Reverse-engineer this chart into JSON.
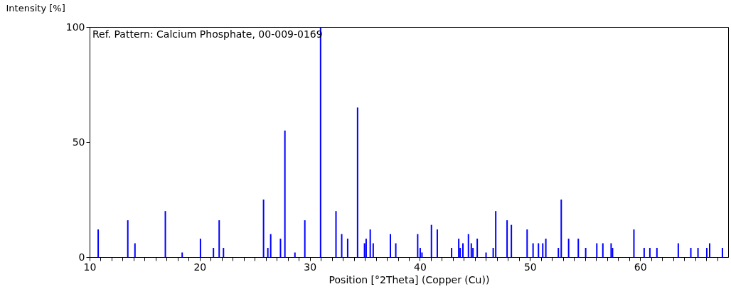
{
  "chart_data": {
    "type": "bar",
    "xlabel": "Position [°2Theta] (Copper (Cu))",
    "ylabel": "Intensity [%]",
    "annotations": [
      "Ref. Pattern: Calcium Phosphate, 00-009-0169"
    ],
    "x": [
      10.78,
      13.47,
      14.12,
      16.88,
      18.41,
      20.07,
      21.25,
      21.77,
      22.16,
      25.8,
      26.19,
      26.45,
      27.34,
      27.74,
      28.65,
      29.55,
      30.98,
      32.38,
      32.9,
      33.44,
      34.34,
      34.97,
      35.12,
      35.49,
      35.76,
      37.32,
      37.81,
      39.8,
      40.03,
      40.19,
      41.05,
      41.58,
      42.88,
      43.53,
      43.66,
      43.91,
      44.41,
      44.67,
      44.82,
      45.21,
      46.01,
      46.66,
      46.89,
      47.92,
      48.31,
      49.74,
      50.28,
      50.77,
      51.16,
      51.44,
      52.58,
      52.84,
      53.51,
      54.39,
      55.06,
      56.07,
      56.62,
      57.37,
      57.5,
      59.44,
      60.37,
      60.89,
      61.53,
      63.47,
      64.61,
      65.26,
      66.06,
      66.32,
      67.48
    ],
    "series": [
      {
        "color": "#0000ff",
        "values": [
          12,
          16,
          6,
          20,
          2,
          8,
          4,
          16,
          4,
          25,
          4,
          10,
          8,
          55,
          2,
          16,
          100,
          20,
          10,
          8,
          65,
          6,
          8,
          12,
          6,
          10,
          6,
          10,
          4,
          2,
          14,
          12,
          4,
          8,
          4,
          6,
          10,
          6,
          4,
          8,
          2,
          4,
          20,
          16,
          14,
          12,
          6,
          6,
          6,
          8,
          4,
          25,
          8,
          8,
          4,
          6,
          6,
          6,
          4,
          12,
          4,
          4,
          4,
          6,
          4,
          4,
          4,
          6,
          4
        ]
      }
    ],
    "xlim": [
      10,
      68
    ],
    "ylim": [
      0,
      100
    ],
    "yticks": [
      0,
      50,
      100
    ],
    "xticks": [
      10,
      {
        "value": 11,
        "label": null
      },
      {
        "value": 12,
        "label": null
      },
      {
        "value": 13,
        "label": null
      },
      {
        "value": 14,
        "label": null
      },
      {
        "value": 15,
        "label": null
      },
      {
        "value": 16,
        "label": null
      },
      {
        "value": 17,
        "label": null
      },
      {
        "value": 18,
        "label": null
      },
      {
        "value": 19,
        "label": null
      },
      20,
      {
        "value": 21,
        "label": null
      },
      {
        "value": 22,
        "label": null
      },
      {
        "value": 23,
        "label": null
      },
      {
        "value": 24,
        "label": null
      },
      {
        "value": 25,
        "label": null
      },
      {
        "value": 26,
        "label": null
      },
      {
        "value": 27,
        "label": null
      },
      {
        "value": 28,
        "label": null
      },
      {
        "value": 29,
        "label": null
      },
      30,
      {
        "value": 31,
        "label": null
      },
      {
        "value": 32,
        "label": null
      },
      {
        "value": 33,
        "label": null
      },
      {
        "value": 34,
        "label": null
      },
      {
        "value": 35,
        "label": null
      },
      {
        "value": 36,
        "label": null
      },
      {
        "value": 37,
        "label": null
      },
      {
        "value": 38,
        "label": null
      },
      {
        "value": 39,
        "label": null
      },
      40,
      {
        "value": 41,
        "label": null
      },
      {
        "value": 42,
        "label": null
      },
      {
        "value": 43,
        "label": null
      },
      {
        "value": 44,
        "label": null
      },
      {
        "value": 45,
        "label": null
      },
      {
        "value": 46,
        "label": null
      },
      {
        "value": 47,
        "label": null
      },
      {
        "value": 48,
        "label": null
      },
      {
        "value": 49,
        "label": null
      },
      50,
      {
        "value": 51,
        "label": null
      },
      {
        "value": 52,
        "label": null
      },
      {
        "value": 53,
        "label": null
      },
      {
        "value": 54,
        "label": null
      },
      {
        "value": 55,
        "label": null
      },
      {
        "value": 56,
        "label": null
      },
      {
        "value": 57,
        "label": null
      },
      {
        "value": 58,
        "label": null
      },
      {
        "value": 59,
        "label": null
      },
      60,
      {
        "value": 61,
        "label": null
      },
      {
        "value": 62,
        "label": null
      },
      {
        "value": 63,
        "label": null
      },
      {
        "value": 64,
        "label": null
      },
      {
        "value": 65,
        "label": null
      },
      {
        "value": 66,
        "label": null
      },
      {
        "value": 67,
        "label": null
      }
    ],
    "grid": false
  }
}
